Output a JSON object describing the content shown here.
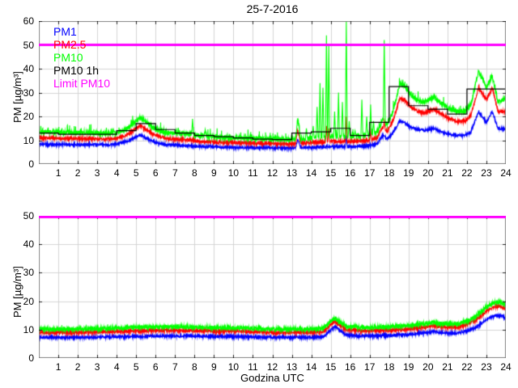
{
  "colors": {
    "pm1": "#0000ff",
    "pm25": "#ff0000",
    "pm10": "#00ff00",
    "pm10_1h": "#000000",
    "limit": "#ff00ff",
    "grid": "#d4d4d4",
    "frame": "#888888",
    "tick": "#222222",
    "background": "#ffffff"
  },
  "chart_data": [
    {
      "type": "line",
      "title": "25-7-2016",
      "ylabel": "PM [µg/m³]",
      "xlabel": "",
      "xlim": [
        0,
        24
      ],
      "ylim": [
        0,
        60
      ],
      "x_ticks": [
        1,
        2,
        3,
        4,
        5,
        6,
        7,
        8,
        9,
        10,
        11,
        12,
        13,
        14,
        15,
        16,
        17,
        18,
        19,
        20,
        21,
        22,
        23,
        24
      ],
      "y_ticks": [
        0,
        10,
        20,
        30,
        40,
        50,
        60
      ],
      "grid": true,
      "legend": {
        "position": "top-left",
        "entries": [
          "PM1",
          "PM2.5",
          "PM10",
          "PM10 1h",
          "Limit PM10"
        ]
      },
      "anchor_hours": [
        0,
        1,
        2,
        3,
        3.5,
        4,
        4.5,
        5.2,
        5.6,
        6,
        6.5,
        7,
        7.5,
        8,
        8.6,
        9,
        10,
        11,
        12,
        12.7,
        13.2,
        13.3,
        13.45,
        14,
        14.5,
        15,
        16,
        16.5,
        17,
        17.4,
        17.65,
        17.9,
        18.2,
        18.55,
        18.8,
        19.1,
        19.5,
        19.8,
        20.3,
        20.7,
        21.1,
        21.5,
        21.9,
        22.2,
        22.6,
        23,
        23.3,
        23.6,
        24
      ],
      "series": [
        {
          "name": "PM1",
          "color": "#0000ff",
          "kind": "noisy",
          "noise": 0.5,
          "extra_up": 0.3,
          "extra_p": 0.03,
          "values": [
            8.4,
            8.2,
            8.2,
            8.2,
            8,
            8.4,
            9.5,
            12.3,
            10.5,
            9,
            8.2,
            8,
            7.8,
            7.5,
            7.3,
            7.2,
            7,
            6.9,
            6.8,
            6.7,
            6.8,
            10.5,
            6.9,
            7,
            7.2,
            7.4,
            7.4,
            7.5,
            7.8,
            8.5,
            12,
            10.5,
            13,
            18,
            17.5,
            15.5,
            14.5,
            14,
            15,
            13.5,
            12.5,
            12,
            12,
            13.5,
            22,
            17.5,
            22,
            15,
            14.5
          ],
          "spikes": [
            [
              15.8,
              12
            ],
            [
              17.75,
              12
            ]
          ]
        },
        {
          "name": "PM2.5",
          "color": "#ff0000",
          "kind": "noisy",
          "noise": 0.6,
          "extra_up": 0.6,
          "extra_p": 0.03,
          "values": [
            11,
            10.8,
            10.6,
            10.6,
            10.4,
            10.8,
            12,
            16.3,
            14,
            12,
            10.8,
            10.5,
            10.2,
            9.8,
            9.4,
            9.2,
            9,
            8.8,
            8.6,
            8.4,
            8.5,
            14.5,
            8.7,
            9,
            9.2,
            9.5,
            9.5,
            9.7,
            10,
            11,
            15.5,
            13.5,
            18,
            27.5,
            27,
            24,
            22,
            21.5,
            23,
            21,
            19,
            18,
            18,
            20.5,
            32,
            27,
            32,
            22,
            22
          ],
          "spikes": [
            [
              14.78,
              16
            ],
            [
              14.9,
              15
            ],
            [
              15.8,
              20
            ],
            [
              17.05,
              14
            ],
            [
              17.75,
              18
            ]
          ]
        },
        {
          "name": "PM10",
          "color": "#00ff00",
          "kind": "noisy",
          "noise": 0.9,
          "extra_up": 3.2,
          "extra_p": 0.045,
          "values": [
            13.4,
            13.2,
            13,
            13,
            12.8,
            13.2,
            14.5,
            19.7,
            17,
            14.5,
            13.2,
            13,
            12.6,
            12.2,
            11.8,
            11.4,
            11,
            10.8,
            10.5,
            10.2,
            10.4,
            19.5,
            10.5,
            11,
            11.2,
            11.5,
            11.5,
            12,
            12.3,
            13.5,
            18.5,
            16.5,
            22,
            33.5,
            33,
            29,
            26.5,
            26,
            28,
            25.5,
            23,
            22,
            22,
            25,
            39,
            32,
            37,
            26,
            27.5
          ],
          "spikes": [
            [
              7.9,
              19
            ],
            [
              8.55,
              14.5
            ],
            [
              13.75,
              15
            ],
            [
              14.1,
              16
            ],
            [
              14.3,
              24
            ],
            [
              14.45,
              34
            ],
            [
              14.6,
              32
            ],
            [
              14.78,
              54
            ],
            [
              14.9,
              50
            ],
            [
              15.2,
              22
            ],
            [
              15.4,
              30
            ],
            [
              15.6,
              26
            ],
            [
              15.8,
              60
            ],
            [
              15.95,
              18
            ],
            [
              16.25,
              14
            ],
            [
              16.6,
              27
            ],
            [
              16.85,
              20
            ],
            [
              17.05,
              25
            ],
            [
              17.2,
              18
            ],
            [
              17.75,
              52
            ]
          ]
        },
        {
          "name": "PM10 1h",
          "color": "#000000",
          "kind": "step",
          "hourly_values": [
            13,
            12.5,
            12.5,
            12.5,
            14,
            17,
            14.5,
            13,
            12,
            11.5,
            11,
            10.5,
            10.3,
            13,
            13.5,
            15,
            12,
            17.5,
            32.5,
            24.5,
            23,
            21,
            31.5,
            31.5
          ]
        },
        {
          "name": "Limit PM10",
          "color": "#ff00ff",
          "kind": "hline",
          "value": 50,
          "line_width": 3
        }
      ]
    },
    {
      "type": "line",
      "title": "",
      "ylabel": "PM [µg/m³]",
      "xlabel": "Godzina UTC",
      "xlim": [
        0,
        24
      ],
      "ylim": [
        0,
        50
      ],
      "x_ticks": [
        1,
        2,
        3,
        4,
        5,
        6,
        7,
        8,
        9,
        10,
        11,
        12,
        13,
        14,
        15,
        16,
        17,
        18,
        19,
        20,
        21,
        22,
        23,
        24
      ],
      "y_ticks": [
        0,
        10,
        20,
        30,
        40,
        50
      ],
      "grid": true,
      "anchor_hours": [
        0,
        2,
        4,
        5,
        6,
        7,
        8,
        9,
        10,
        11,
        12,
        13,
        14,
        14.6,
        15.2,
        15.8,
        16.5,
        17,
        18,
        19,
        19.7,
        20.3,
        21,
        21.5,
        22,
        22.5,
        23,
        23.4,
        23.7,
        24
      ],
      "series": [
        {
          "name": "PM1",
          "color": "#0000ff",
          "kind": "noisy",
          "noise": 0.45,
          "extra_up": 0.2,
          "extra_p": 0.02,
          "values": [
            7.3,
            7.3,
            7.5,
            7.6,
            7.8,
            7.8,
            7.8,
            7.6,
            7.6,
            7.4,
            7.3,
            7.3,
            7.3,
            7.5,
            11,
            8.2,
            7.8,
            7.8,
            8,
            8.3,
            8.8,
            9.3,
            8.8,
            8.8,
            9.5,
            11,
            13.5,
            14.8,
            15,
            14
          ],
          "spikes": []
        },
        {
          "name": "PM2.5",
          "color": "#ff0000",
          "kind": "noisy",
          "noise": 0.5,
          "extra_up": 0.3,
          "extra_p": 0.02,
          "values": [
            9,
            9,
            9.3,
            9.5,
            9.7,
            9.7,
            9.6,
            9.5,
            9.5,
            9.2,
            9,
            9,
            9,
            9.3,
            12.8,
            10,
            9.6,
            9.6,
            9.8,
            10.2,
            10.8,
            11.3,
            10.8,
            10.8,
            11.8,
            13.5,
            16.5,
            18,
            18.2,
            17.3
          ],
          "spikes": []
        },
        {
          "name": "PM10",
          "color": "#00ff00",
          "kind": "noisy",
          "noise": 0.65,
          "extra_up": 1.0,
          "extra_p": 0.03,
          "values": [
            10.2,
            10.2,
            10.5,
            10.8,
            11,
            11,
            10.8,
            10.7,
            10.7,
            10.4,
            10.2,
            10.2,
            10.2,
            10.5,
            14,
            11.2,
            10.8,
            10.8,
            11,
            11.4,
            12,
            12.5,
            12,
            12,
            13,
            14.8,
            18,
            19.5,
            19.7,
            18.7
          ],
          "spikes": []
        },
        {
          "name": "Limit PM10",
          "color": "#ff00ff",
          "kind": "hline",
          "value": 50,
          "line_width": 3
        }
      ]
    }
  ]
}
